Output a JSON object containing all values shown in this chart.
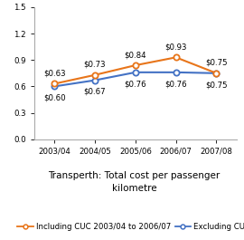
{
  "x_labels": [
    "2003/04",
    "2004/05",
    "2005/06",
    "2006/07",
    "2007/08"
  ],
  "x_vals": [
    0,
    1,
    2,
    3,
    4
  ],
  "series1_name": "Including CUC 2003/04 to 2006/07",
  "series1_values": [
    0.63,
    0.73,
    0.84,
    0.93,
    0.75
  ],
  "series1_color": "#E8751A",
  "series1_labels": [
    "$0.63",
    "$0.73",
    "$0.84",
    "$0.93",
    "$0.75"
  ],
  "series2_name": "Excluding CUC",
  "series2_values": [
    0.6,
    0.67,
    0.76,
    0.76,
    0.75
  ],
  "series2_color": "#4472C4",
  "series2_labels": [
    "$0.60",
    "$0.67",
    "$0.76",
    "$0.76",
    "$0.75"
  ],
  "ylim": [
    0.0,
    1.5
  ],
  "yticks": [
    0.0,
    0.3,
    0.6,
    0.9,
    1.2,
    1.5
  ],
  "title": "Transperth: Total cost per passenger\nkilometre",
  "title_fontsize": 7.5,
  "label_fontsize": 6.2,
  "tick_fontsize": 6.2,
  "legend_fontsize": 6.2,
  "marker_size": 4.5,
  "line_width": 1.5,
  "background_color": "#ffffff"
}
